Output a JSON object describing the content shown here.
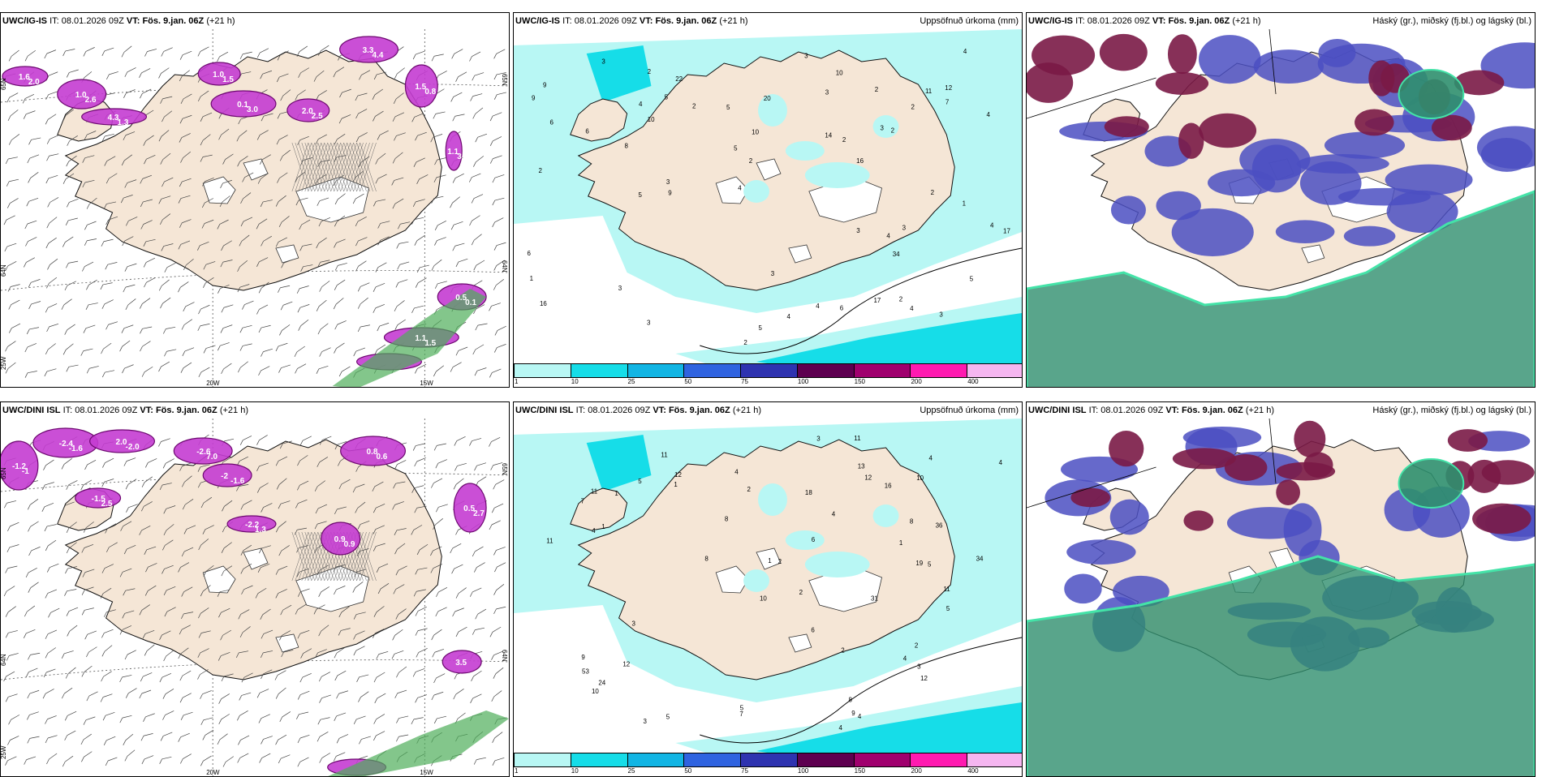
{
  "panels": [
    {
      "id": "p1",
      "model": "UWC/IG-IS",
      "it_prefix": "IT:",
      "it": "08.01.2026 09Z",
      "vt_prefix": "VT:",
      "vt": "Fös. 9.jan. 06Z",
      "lead": "(+21 h)",
      "title_right": "",
      "type": "wind",
      "lat_labels": [
        "65N",
        "64N"
      ],
      "lon_labels": [
        "25W",
        "20W",
        "15W"
      ],
      "values": [
        "1.6",
        "2.0",
        "1.0",
        "2.6",
        "4.3",
        "1.3",
        "1.0",
        "1.5",
        "0.1",
        "3.0",
        "2.0",
        "2.5",
        "3.3",
        "4.4",
        "1.5",
        "0.8",
        "1.1",
        "3.5",
        "0.5",
        "0.1",
        "1.1",
        "1.5"
      ]
    },
    {
      "id": "p2",
      "model": "UWC/IG-IS",
      "it_prefix": "IT:",
      "it": "08.01.2026 09Z",
      "vt_prefix": "VT:",
      "vt": "Fös. 9.jan. 06Z",
      "lead": "(+21 h)",
      "title_right": "Uppsöfnuð úrkoma (mm)",
      "type": "precip",
      "colorbar": {
        "ticks": [
          "1",
          "10",
          "25",
          "50",
          "75",
          "100",
          "150",
          "200",
          "400"
        ],
        "colors": [
          "#b8f7f4",
          "#16dde8",
          "#12b5e4",
          "#2f63e0",
          "#2e33b0",
          "#5e0050",
          "#a0006e",
          "#ff1ab0",
          "#f5b6f0"
        ]
      },
      "values": [
        "6",
        "10",
        "16",
        "5",
        "11",
        "2",
        "3",
        "9",
        "12",
        "17",
        "4",
        "5",
        "3",
        "3",
        "2",
        "3",
        "3",
        "5",
        "3",
        "4",
        "4",
        "1",
        "2",
        "3",
        "2",
        "8",
        "7",
        "10",
        "3",
        "5",
        "6",
        "6",
        "4",
        "6",
        "9",
        "2",
        "2",
        "3",
        "3",
        "1",
        "2",
        "4",
        "5",
        "2",
        "4",
        "4",
        "9",
        "2",
        "5",
        "3",
        "10",
        "2",
        "4",
        "4",
        "20",
        "22",
        "16",
        "34",
        "17",
        "14",
        "2"
      ]
    },
    {
      "id": "p3",
      "model": "UWC/IG-IS",
      "it_prefix": "IT:",
      "it": "08.01.2026 09Z",
      "vt_prefix": "VT:",
      "vt": "Fös. 9.jan. 06Z",
      "lead": "(+21 h)",
      "title_right": "Háský (gr.), miðský (fj.bl.) og lágský (bl.)",
      "type": "cloud"
    },
    {
      "id": "p4",
      "model": "UWC/DINI ISL",
      "it_prefix": "IT:",
      "it": "08.01.2026 09Z",
      "vt_prefix": "VT:",
      "vt": "Fös. 9.jan. 06Z",
      "lead": "(+21 h)",
      "title_right": "",
      "type": "wind",
      "lat_labels": [
        "65N",
        "64N"
      ],
      "lon_labels": [
        "25W",
        "20W",
        "15W"
      ],
      "values": [
        "-1.2",
        "-1",
        "-2.4",
        "-1.6",
        "2.0",
        "-2.0",
        "-2.6",
        "7.0",
        "-2",
        "-1.6",
        "-1.5",
        "2.5",
        "0.8",
        "0.6",
        "0.9",
        "0.9",
        "-2.2",
        "1.3",
        "0.5",
        "2.7",
        "3.5"
      ]
    },
    {
      "id": "p5",
      "model": "UWC/DINI ISL",
      "it_prefix": "IT:",
      "it": "08.01.2026 09Z",
      "vt_prefix": "VT:",
      "vt": "Fös. 9.jan. 06Z",
      "lead": "(+21 h)",
      "title_right": "Uppsöfnuð úrkoma (mm)",
      "type": "precip",
      "colorbar": {
        "ticks": [
          "1",
          "10",
          "25",
          "50",
          "75",
          "100",
          "150",
          "200",
          "400"
        ],
        "colors": [
          "#b8f7f4",
          "#16dde8",
          "#12b5e4",
          "#2f63e0",
          "#2e33b0",
          "#5e0050",
          "#a0006e",
          "#ff1ab0",
          "#f5b6f0"
        ]
      },
      "values": [
        "11",
        "8",
        "9",
        "7",
        "10",
        "10",
        "12",
        "10",
        "13",
        "16",
        "24",
        "11",
        "3",
        "4",
        "5",
        "2",
        "1",
        "12",
        "11",
        "8",
        "3",
        "3",
        "8",
        "8",
        "5",
        "4",
        "4",
        "4",
        "6",
        "7",
        "1",
        "2",
        "3",
        "2",
        "9",
        "5",
        "4",
        "4",
        "12",
        "11",
        "6",
        "5",
        "1",
        "1",
        "2",
        "4",
        "12",
        "11",
        "19",
        "18",
        "36",
        "31",
        "53",
        "34",
        "5",
        "4",
        "2",
        "1"
      ]
    },
    {
      "id": "p6",
      "model": "UWC/DINI ISL",
      "it_prefix": "IT:",
      "it": "08.01.2026 09Z",
      "vt_prefix": "VT:",
      "vt": "Fös. 9.jan. 06Z",
      "lead": "(+21 h)",
      "title_right": "Háský (gr.), miðský (fj.bl.) og lágský (bl.)",
      "type": "cloud"
    }
  ]
}
